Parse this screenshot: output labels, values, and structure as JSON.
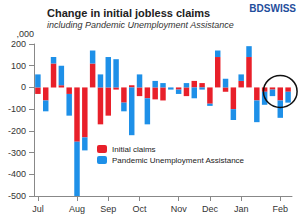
{
  "chart_data": {
    "type": "bar",
    "title": "Change in initial jobless claims",
    "subtitle": "including Pandemic Unemployment Assistance",
    "y_label": ",000",
    "annotations": [
      "BDSWISS"
    ],
    "categories": [
      "Jul",
      null,
      null,
      null,
      null,
      "Aug",
      null,
      null,
      null,
      "Sep",
      null,
      null,
      null,
      "Oct",
      null,
      null,
      null,
      null,
      "Nov",
      null,
      null,
      null,
      "Dec",
      null,
      null,
      null,
      "Jan",
      null,
      null,
      null,
      null,
      "Feb",
      null
    ],
    "series": [
      {
        "name": "Initial claims",
        "color": "#e8202a",
        "values": [
          -30,
          -60,
          110,
          10,
          -30,
          -250,
          -230,
          110,
          -170,
          -130,
          -10,
          -70,
          10,
          -40,
          -50,
          -55,
          -60,
          0,
          -10,
          -40,
          30,
          20,
          -75,
          140,
          -20,
          -100,
          30,
          140,
          -60,
          -20,
          -10,
          -60,
          -20
        ]
      },
      {
        "name": "Pandemic Unemployment Assistance",
        "color": "#1e90e8",
        "values": [
          60,
          -50,
          30,
          90,
          -100,
          -250,
          -60,
          60,
          60,
          140,
          130,
          -40,
          -220,
          60,
          -120,
          30,
          20,
          -10,
          -20,
          20,
          -50,
          -10,
          -10,
          30,
          40,
          -50,
          30,
          50,
          -100,
          -60,
          -30,
          -80,
          -50
        ]
      }
    ],
    "stacked": true,
    "ylim": [
      -500,
      200
    ],
    "yticks": [
      -500,
      -400,
      -300,
      -200,
      -100,
      0,
      100,
      200
    ],
    "grid": false,
    "legend": "lower left"
  }
}
